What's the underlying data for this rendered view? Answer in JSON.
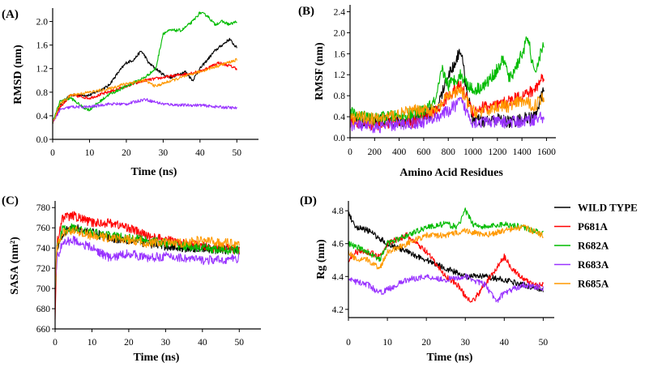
{
  "chart_data": [
    {
      "panel": "(A)",
      "type": "line",
      "xlabel": "Time (ns)",
      "ylabel": "RMSD (nm)",
      "xlim": [
        0,
        55
      ],
      "ylim": [
        0,
        2.2
      ],
      "xticks": [
        0,
        10,
        20,
        30,
        40,
        50
      ],
      "yticks": [
        0.0,
        0.4,
        0.8,
        1.2,
        1.6,
        2.0
      ],
      "ytick_labels": [
        "0.0",
        "0.4",
        "0.8",
        "1.2",
        "1.6",
        "2.0"
      ],
      "noise": 0.025,
      "series": [
        {
          "name": "WILD TYPE",
          "color": "#000000",
          "x": [
            0,
            2,
            5,
            10,
            15,
            18,
            20,
            22,
            24,
            25,
            26,
            28,
            30,
            32,
            34,
            36,
            38,
            40,
            42,
            44,
            46,
            48,
            50
          ],
          "y": [
            0.28,
            0.6,
            0.75,
            0.75,
            0.9,
            1.15,
            1.3,
            1.35,
            1.5,
            1.42,
            1.3,
            1.2,
            1.1,
            1.05,
            1.1,
            1.15,
            1.0,
            1.2,
            1.35,
            1.5,
            1.6,
            1.7,
            1.55
          ]
        },
        {
          "name": "P681A",
          "color": "#ff0000",
          "x": [
            0,
            2,
            5,
            10,
            15,
            20,
            25,
            30,
            35,
            40,
            45,
            48,
            50
          ],
          "y": [
            0.28,
            0.55,
            0.75,
            0.7,
            0.8,
            0.9,
            1.0,
            1.05,
            1.1,
            1.15,
            1.3,
            1.25,
            1.2
          ]
        },
        {
          "name": "R682A",
          "color": "#00bb00",
          "x": [
            0,
            2,
            5,
            8,
            10,
            15,
            20,
            25,
            28,
            30,
            32,
            35,
            38,
            40,
            42,
            44,
            46,
            48,
            50
          ],
          "y": [
            0.28,
            0.65,
            0.7,
            0.55,
            0.5,
            0.75,
            0.9,
            1.05,
            1.2,
            1.8,
            1.85,
            1.85,
            2.0,
            2.15,
            2.1,
            1.95,
            2.0,
            1.95,
            2.0
          ]
        },
        {
          "name": "R683A",
          "color": "#9933ff",
          "x": [
            0,
            2,
            5,
            10,
            15,
            20,
            25,
            30,
            35,
            40,
            45,
            50
          ],
          "y": [
            0.28,
            0.5,
            0.55,
            0.55,
            0.6,
            0.6,
            0.68,
            0.6,
            0.58,
            0.58,
            0.55,
            0.53
          ]
        },
        {
          "name": "R685A",
          "color": "#ff9900",
          "x": [
            0,
            2,
            5,
            10,
            15,
            20,
            25,
            28,
            30,
            35,
            40,
            45,
            50
          ],
          "y": [
            0.28,
            0.6,
            0.75,
            0.8,
            0.85,
            0.95,
            1.0,
            0.9,
            0.95,
            1.05,
            1.15,
            1.25,
            1.35
          ]
        }
      ]
    },
    {
      "panel": "(B)",
      "type": "line",
      "xlabel": "Amino Acid Residues",
      "ylabel": "RMSF (nm)",
      "xlim": [
        0,
        1650
      ],
      "ylim": [
        0,
        2.5
      ],
      "xticks": [
        0,
        200,
        400,
        600,
        800,
        1000,
        1200,
        1400,
        1600
      ],
      "yticks": [
        0.0,
        0.4,
        0.8,
        1.2,
        1.6,
        2.0,
        2.4
      ],
      "ytick_labels": [
        "0.0",
        "0.4",
        "0.8",
        "1.2",
        "1.6",
        "2.0",
        "2.4"
      ],
      "noise": 0.12,
      "series": [
        {
          "name": "WILD TYPE",
          "color": "#000000",
          "x": [
            0,
            100,
            200,
            300,
            400,
            500,
            600,
            700,
            800,
            850,
            900,
            950,
            1000,
            1100,
            1200,
            1300,
            1400,
            1500,
            1580
          ],
          "y": [
            0.4,
            0.3,
            0.3,
            0.35,
            0.3,
            0.35,
            0.45,
            0.5,
            1.2,
            1.4,
            1.7,
            0.9,
            0.35,
            0.3,
            0.35,
            0.3,
            0.35,
            0.4,
            0.9
          ]
        },
        {
          "name": "P681A",
          "color": "#ff0000",
          "x": [
            0,
            100,
            200,
            300,
            400,
            500,
            600,
            700,
            800,
            900,
            1000,
            1100,
            1200,
            1300,
            1400,
            1500,
            1580
          ],
          "y": [
            0.3,
            0.3,
            0.25,
            0.3,
            0.3,
            0.3,
            0.4,
            0.5,
            0.8,
            1.0,
            0.5,
            0.6,
            0.6,
            0.7,
            0.8,
            0.9,
            1.2
          ]
        },
        {
          "name": "R682A",
          "color": "#00bb00",
          "x": [
            0,
            100,
            200,
            300,
            400,
            500,
            600,
            700,
            750,
            800,
            900,
            1000,
            1100,
            1200,
            1250,
            1300,
            1400,
            1450,
            1500,
            1580
          ],
          "y": [
            0.5,
            0.4,
            0.35,
            0.4,
            0.4,
            0.45,
            0.5,
            0.7,
            1.3,
            1.0,
            1.2,
            0.9,
            1.0,
            1.3,
            1.5,
            1.1,
            1.6,
            1.9,
            1.2,
            1.8
          ]
        },
        {
          "name": "R683A",
          "color": "#9933ff",
          "x": [
            0,
            200,
            400,
            600,
            800,
            900,
            1000,
            1200,
            1400,
            1580
          ],
          "y": [
            0.25,
            0.2,
            0.25,
            0.3,
            0.5,
            0.7,
            0.3,
            0.3,
            0.3,
            0.4
          ]
        },
        {
          "name": "R685A",
          "color": "#ff9900",
          "x": [
            0,
            100,
            200,
            300,
            400,
            500,
            600,
            700,
            800,
            900,
            1000,
            1100,
            1200,
            1300,
            1400,
            1500,
            1580
          ],
          "y": [
            0.35,
            0.4,
            0.35,
            0.4,
            0.45,
            0.5,
            0.55,
            0.5,
            0.8,
            0.9,
            0.5,
            0.5,
            0.6,
            0.6,
            0.7,
            0.6,
            0.8
          ]
        }
      ]
    },
    {
      "panel": "(C)",
      "type": "line",
      "xlabel": "Time (ns)",
      "ylabel": "SASA (nm²)",
      "xlim": [
        0,
        55
      ],
      "ylim": [
        660,
        785
      ],
      "xticks": [
        0,
        10,
        20,
        30,
        40,
        50
      ],
      "yticks": [
        660,
        680,
        700,
        720,
        740,
        760,
        780
      ],
      "ytick_labels": [
        "660",
        "680",
        "700",
        "720",
        "740",
        "760",
        "780"
      ],
      "noise": 4.5,
      "series": [
        {
          "name": "WILD TYPE",
          "color": "#000000",
          "x": [
            0,
            0.5,
            2,
            5,
            10,
            15,
            20,
            25,
            30,
            35,
            40,
            45,
            50
          ],
          "y": [
            690,
            740,
            755,
            760,
            755,
            750,
            748,
            745,
            742,
            740,
            740,
            738,
            740
          ]
        },
        {
          "name": "P681A",
          "color": "#ff0000",
          "x": [
            0,
            0.5,
            2,
            5,
            10,
            15,
            20,
            25,
            30,
            35,
            40,
            45,
            50
          ],
          "y": [
            672,
            745,
            770,
            772,
            765,
            765,
            760,
            752,
            748,
            745,
            742,
            740,
            738
          ]
        },
        {
          "name": "R682A",
          "color": "#00bb00",
          "x": [
            0,
            0.5,
            2,
            5,
            10,
            15,
            20,
            25,
            30,
            35,
            40,
            45,
            50
          ],
          "y": [
            700,
            740,
            758,
            760,
            755,
            752,
            750,
            748,
            745,
            742,
            740,
            738,
            738
          ]
        },
        {
          "name": "R683A",
          "color": "#9933ff",
          "x": [
            0,
            0.5,
            2,
            5,
            10,
            15,
            20,
            25,
            30,
            35,
            40,
            45,
            50
          ],
          "y": [
            700,
            730,
            745,
            748,
            740,
            730,
            735,
            730,
            732,
            730,
            728,
            728,
            730
          ]
        },
        {
          "name": "R685A",
          "color": "#ff9900",
          "x": [
            0,
            0.5,
            2,
            5,
            10,
            15,
            20,
            25,
            30,
            35,
            40,
            45,
            50
          ],
          "y": [
            705,
            740,
            755,
            758,
            752,
            750,
            748,
            745,
            745,
            745,
            748,
            745,
            745
          ]
        }
      ]
    },
    {
      "panel": "(D)",
      "type": "line",
      "xlabel": "Time (ns)",
      "ylabel": "Rg (nm)",
      "xlim": [
        0,
        52
      ],
      "ylim": [
        4.15,
        4.85
      ],
      "xticks": [
        0,
        10,
        20,
        30,
        40,
        50
      ],
      "yticks": [
        4.2,
        4.4,
        4.6,
        4.8
      ],
      "ytick_labels": [
        "4.2",
        "4.4",
        "4.6",
        "4.8"
      ],
      "noise": 0.018,
      "series": [
        {
          "name": "WILD TYPE",
          "color": "#000000",
          "x": [
            0,
            2,
            5,
            10,
            15,
            20,
            25,
            30,
            35,
            40,
            45,
            50
          ],
          "y": [
            4.78,
            4.7,
            4.68,
            4.6,
            4.55,
            4.5,
            4.45,
            4.4,
            4.4,
            4.38,
            4.35,
            4.32
          ]
        },
        {
          "name": "P681A",
          "color": "#ff0000",
          "x": [
            0,
            2,
            5,
            8,
            10,
            15,
            20,
            25,
            28,
            30,
            32,
            35,
            38,
            40,
            42,
            45,
            48,
            50
          ],
          "y": [
            4.5,
            4.55,
            4.55,
            4.52,
            4.6,
            4.65,
            4.55,
            4.4,
            4.35,
            4.28,
            4.25,
            4.35,
            4.45,
            4.52,
            4.45,
            4.38,
            4.35,
            4.35
          ]
        },
        {
          "name": "R682A",
          "color": "#00bb00",
          "x": [
            0,
            2,
            5,
            8,
            10,
            15,
            20,
            25,
            28,
            30,
            32,
            35,
            40,
            45,
            50
          ],
          "y": [
            4.6,
            4.58,
            4.55,
            4.5,
            4.6,
            4.65,
            4.7,
            4.72,
            4.7,
            4.8,
            4.72,
            4.7,
            4.72,
            4.7,
            4.66
          ]
        },
        {
          "name": "R683A",
          "color": "#9933ff",
          "x": [
            0,
            5,
            8,
            10,
            15,
            20,
            25,
            30,
            35,
            38,
            40,
            45,
            50
          ],
          "y": [
            4.38,
            4.35,
            4.3,
            4.32,
            4.38,
            4.4,
            4.38,
            4.4,
            4.35,
            4.25,
            4.3,
            4.35,
            4.33
          ]
        },
        {
          "name": "R685A",
          "color": "#ff9900",
          "x": [
            0,
            2,
            5,
            8,
            10,
            15,
            20,
            25,
            30,
            35,
            40,
            45,
            50
          ],
          "y": [
            4.55,
            4.5,
            4.5,
            4.45,
            4.55,
            4.6,
            4.65,
            4.65,
            4.68,
            4.65,
            4.68,
            4.7,
            4.65
          ]
        }
      ]
    }
  ],
  "legend": [
    {
      "label": "WILD TYPE",
      "color": "#000000"
    },
    {
      "label": "P681A",
      "color": "#ff0000"
    },
    {
      "label": "R682A",
      "color": "#00bb00"
    },
    {
      "label": "R683A",
      "color": "#9933ff"
    },
    {
      "label": "R685A",
      "color": "#ff9900"
    }
  ]
}
